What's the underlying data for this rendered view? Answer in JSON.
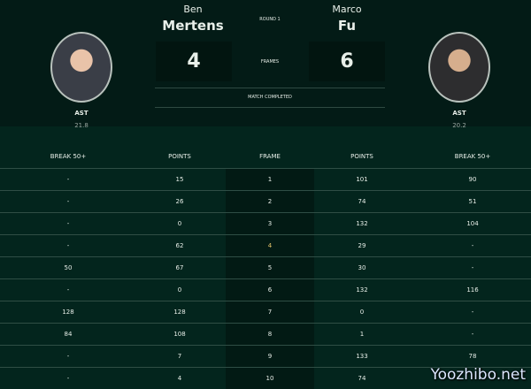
{
  "match": {
    "round": "ROUND 1",
    "frames_label": "FRAMES",
    "status": "MATCH COMPLETED"
  },
  "player1": {
    "first": "Ben",
    "last": "Mertens",
    "score": "4",
    "nationality": "AST",
    "rank": "21.8"
  },
  "player2": {
    "first": "Marco",
    "last": "Fu",
    "score": "6",
    "nationality": "AST",
    "rank": "20.2"
  },
  "table": {
    "headers": [
      "BREAK 50+",
      "POINTS",
      "FRAME",
      "POINTS",
      "BREAK 50+"
    ],
    "rows": [
      [
        "-",
        "15",
        "1",
        "101",
        "90"
      ],
      [
        "-",
        "26",
        "2",
        "74",
        "51"
      ],
      [
        "-",
        "0",
        "3",
        "132",
        "104"
      ],
      [
        "-",
        "62",
        "4",
        "29",
        "-"
      ],
      [
        "50",
        "67",
        "5",
        "30",
        "-"
      ],
      [
        "-",
        "0",
        "6",
        "132",
        "116"
      ],
      [
        "128",
        "128",
        "7",
        "0",
        "-"
      ],
      [
        "84",
        "108",
        "8",
        "1",
        "-"
      ],
      [
        "-",
        "7",
        "9",
        "133",
        "78"
      ],
      [
        "-",
        "4",
        "10",
        "74",
        ""
      ]
    ],
    "highlight_frame": "4",
    "highlight_color": "#e2c26a"
  },
  "watermark": "Yoozhibo.net"
}
